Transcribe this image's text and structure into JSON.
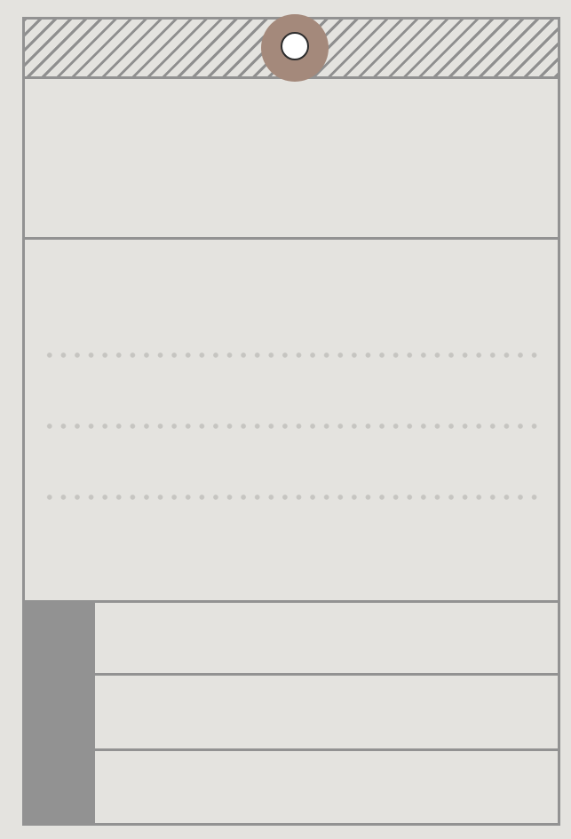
{
  "tag": {
    "writing_lines": 3,
    "rows": 3
  },
  "colors": {
    "background": "#e4e3df",
    "stroke": "#929292",
    "grommet": "#a4897b",
    "dots": "#c6c5c1"
  }
}
